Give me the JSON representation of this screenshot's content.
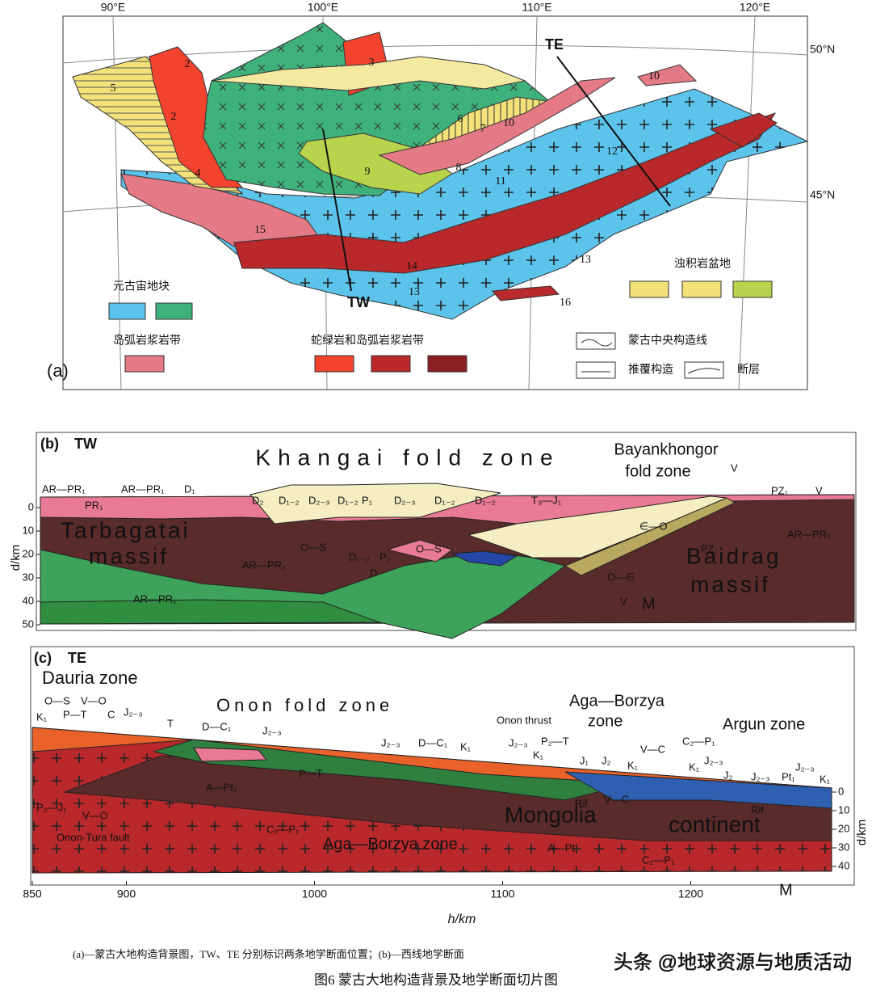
{
  "panel_a": {
    "label": "(a)",
    "longitudes": [
      "90°E",
      "100°E",
      "110°E",
      "120°E"
    ],
    "latitudes": [
      "50°N",
      "45°N"
    ],
    "sections": [
      "TW",
      "TE"
    ],
    "zones": [
      "5",
      "2",
      "2",
      "3",
      "4",
      "6",
      "7",
      "8",
      "9",
      "10",
      "10",
      "11",
      "12",
      "13",
      "13",
      "14",
      "15",
      "16"
    ],
    "legend": {
      "proterozoic_blocks": "元古宙地块",
      "arc_belt": "岛弧岩浆岩带",
      "ophiolite_arc_belt": "蛇绿岩和岛弧岩浆岩带",
      "turbidite_basins": "浊积岩盆地",
      "central_lineament": "蒙古中央构造线",
      "thrust": "推覆构造",
      "fault": "断层"
    }
  },
  "panel_b": {
    "label": "(b)",
    "section": "TW",
    "title": "Khangai fold zone",
    "subtitle": [
      "Bayankhongor",
      "fold zone"
    ],
    "units": [
      "AR—PR₁",
      "PR₁",
      "AR—PR₁",
      "D₁",
      "D₂",
      "D₁₋₂",
      "D₂₋₃",
      "D₁₋₂",
      "P₁",
      "D₂₋₃",
      "D₁₋₂",
      "D₁₋₂",
      "T₃—J₁",
      "V",
      "PZ₁",
      "V",
      "O—S",
      "D₁₋₂",
      "P₁",
      "O—S",
      "D",
      "∈—O",
      "PZ₁",
      "AR—PR₁",
      "O—∈",
      "AR—PR₁",
      "AR—PR₁",
      "V"
    ],
    "massifs": [
      "Tarbagatai",
      "massif",
      "Baidrag",
      "massif"
    ],
    "moho": "M",
    "depth_label": "d/km",
    "depth_ticks": [
      0,
      10,
      20,
      30,
      40,
      50
    ]
  },
  "panel_c": {
    "label": "(c)",
    "section": "TE",
    "zones": [
      "Dauria zone",
      "Onon   fold   zone",
      "Aga—Borzya",
      "zone",
      "Argun zone",
      "Mongolia",
      "continent",
      "Aga—Borzya zone"
    ],
    "units": [
      "O—S",
      "V—O",
      "K₁",
      "P—T",
      "C",
      "J₂₋₃",
      "T",
      "D—C₁",
      "J₂₋₃",
      "J₂₋₃",
      "D—C₁",
      "K₁",
      "Onon thrust",
      "J₂₋₃",
      "P₂—T",
      "K₁",
      "J₁",
      "J₂",
      "K₁",
      "V—C",
      "C₂—P₁",
      "K₁",
      "J₂₋₃",
      "J₂",
      "J₂₋₃",
      "Pt₁",
      "J₂₋₃",
      "K₁",
      "A—Pt₁",
      "P—T",
      "Rif",
      "V—C",
      "Rif",
      "P₂—J₁",
      "V—O",
      "Onon-Tura fault",
      "C₂—P₁",
      "A—Pt",
      "C₂—P₁"
    ],
    "moho": "M",
    "x_label": "h/km",
    "x_ticks": [
      850,
      900,
      1000,
      1100,
      1200
    ],
    "depth_label": "d/km",
    "depth_ticks": [
      0,
      10,
      20,
      30,
      40
    ]
  },
  "caption": {
    "note": "(a)—蒙古大地构造背景图，TW、TE 分别标识两条地学断面位置；(b)—西线地学断面",
    "title": "图6   蒙古大地构造背景及地学断面切片图"
  },
  "watermark": "头条 @地球资源与地质活动"
}
